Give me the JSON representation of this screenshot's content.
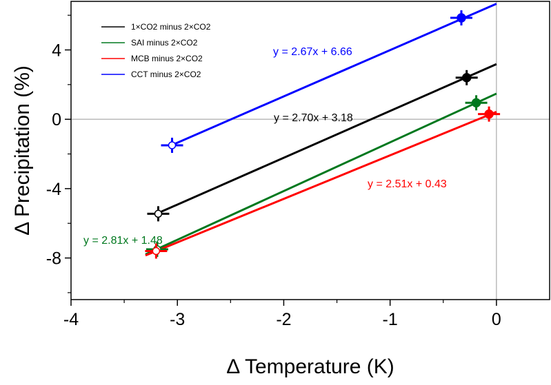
{
  "chart_data": {
    "type": "scatter",
    "xlabel": "Δ Temperature (K)",
    "ylabel": "Δ Precipitation (%)",
    "xlim": [
      -4,
      0.5
    ],
    "ylim": [
      -10.4,
      6.8
    ],
    "x_ticks": [
      "-4",
      "-3",
      "-2",
      "-1",
      "0"
    ],
    "y_ticks": [
      "4",
      "0",
      "-4",
      "-8"
    ],
    "grid": false,
    "reference_lines": {
      "x": 0,
      "y": 0
    },
    "legend_position": "top-left",
    "series": [
      {
        "name": "1×CO2 minus 2×CO2",
        "color": "#000000",
        "points": [
          {
            "x": -3.18,
            "y": -5.45,
            "marker": "open"
          },
          {
            "x": -0.28,
            "y": 2.4,
            "marker": "filled"
          }
        ],
        "fit": {
          "slope": 2.7,
          "intercept": 3.18,
          "x_range": [
            -3.18,
            0
          ],
          "label": "y = 2.70x + 3.18"
        }
      },
      {
        "name": "SAI minus 2×CO2",
        "color": "#00781e",
        "points": [
          {
            "x": -3.19,
            "y": -7.5,
            "marker": "open"
          },
          {
            "x": -0.19,
            "y": 0.95,
            "marker": "filled"
          }
        ],
        "fit": {
          "slope": 2.81,
          "intercept": 1.48,
          "x_range": [
            -3.3,
            0
          ],
          "label": "y = 2.81x + 1.48"
        }
      },
      {
        "name": "MCB minus 2×CO2",
        "color": "#ff0000",
        "points": [
          {
            "x": -3.2,
            "y": -7.6,
            "marker": "open"
          },
          {
            "x": -0.07,
            "y": 0.3,
            "marker": "filled"
          }
        ],
        "fit": {
          "slope": 2.51,
          "intercept": 0.43,
          "x_range": [
            -3.3,
            0
          ],
          "label": "y = 2.51x + 0.43"
        }
      },
      {
        "name": "CCT minus 2×CO2",
        "color": "#0000ff",
        "points": [
          {
            "x": -3.05,
            "y": -1.5,
            "marker": "open"
          },
          {
            "x": -0.33,
            "y": 5.85,
            "marker": "filled"
          }
        ],
        "fit": {
          "slope": 2.67,
          "intercept": 6.66,
          "x_range": [
            -3.05,
            0
          ],
          "label": "y = 2.67x + 6.66"
        }
      }
    ]
  }
}
